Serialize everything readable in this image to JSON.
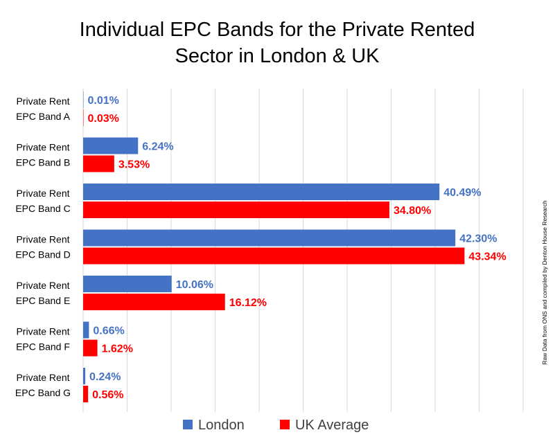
{
  "chart_data": {
    "type": "bar",
    "orientation": "horizontal",
    "title_lines": [
      "Individual EPC Bands for the Private Rented",
      "Sector in London & UK"
    ],
    "categories": [
      [
        "Private Rent",
        "EPC Band A"
      ],
      [
        "Private Rent",
        "EPC Band B"
      ],
      [
        "Private Rent",
        "EPC Band C"
      ],
      [
        "Private Rent",
        "EPC Band D"
      ],
      [
        "Private Rent",
        "EPC Band E"
      ],
      [
        "Private Rent",
        "EPC Band F"
      ],
      [
        "Private Rent",
        "EPC Band G"
      ]
    ],
    "series": [
      {
        "name": "London",
        "color": "#4472c4",
        "values": [
          0.01,
          6.24,
          40.49,
          42.3,
          10.06,
          0.66,
          0.24
        ],
        "labels": [
          "0.01%",
          "6.24%",
          "40.49%",
          "42.30%",
          "10.06%",
          "0.66%",
          "0.24%"
        ]
      },
      {
        "name": "UK Average",
        "color": "#ff0000",
        "values": [
          0.03,
          3.53,
          34.8,
          43.34,
          16.12,
          1.62,
          0.56
        ],
        "labels": [
          "0.03%",
          "3.53%",
          "34.80%",
          "43.34%",
          "16.12%",
          "1.62%",
          "0.56%"
        ]
      }
    ],
    "xlim": [
      0,
      50
    ],
    "grid": true,
    "legend": "bottom",
    "source_note": "Raw Data from ONS and compiled by Denton House Research"
  }
}
